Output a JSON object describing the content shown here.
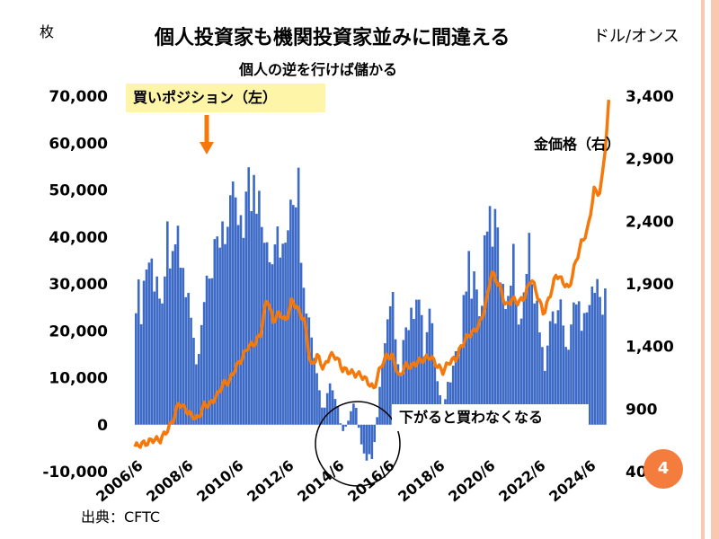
{
  "slide": {
    "title": "個人投資家も機関投資家並みに間違える",
    "subtitle": "個人の逆を行けば儲かる",
    "left_unit": "枚",
    "right_unit": "ドル/オンス",
    "source": "出典：CFTC",
    "page_number": "4"
  },
  "annotations": {
    "buy_box": "買いポジション（左）",
    "sell_box": "下がると買わなくなる",
    "gold_label": "金価格（右）"
  },
  "colors": {
    "bars": "#3c6ac6",
    "gold_line": "#f5780a",
    "arrow": "#f5780a",
    "callout_box": "#fff5a8",
    "stripe": "#f8c9b0",
    "badge": "#f47c3c"
  },
  "chart_data": {
    "type": "bar",
    "x_ticks": [
      "2006/6",
      "2008/6",
      "2010/6",
      "2012/6",
      "2014/6",
      "2016/6",
      "2018/6",
      "2020/6",
      "2022/6",
      "2024/6"
    ],
    "y_left_ticks": [
      "70,000",
      "60,000",
      "50,000",
      "40,000",
      "30,000",
      "20,000",
      "10,000",
      "0",
      "-10,000"
    ],
    "y_right_ticks": [
      "3,400",
      "2,900",
      "2,400",
      "1,900",
      "1,400",
      "900",
      "400"
    ],
    "ylim_left": [
      -10000,
      70000
    ],
    "ylim_right": [
      400,
      3400
    ],
    "x_range": [
      "2006-06",
      "2025-03"
    ],
    "series": [
      {
        "name": "買いポジション（左）",
        "axis": "left",
        "type": "bar",
        "points": [
          [
            "2006-06",
            30000
          ],
          [
            "2006-09",
            25000
          ],
          [
            "2006-12",
            36000
          ],
          [
            "2007-03",
            33000
          ],
          [
            "2007-06",
            27000
          ],
          [
            "2007-09",
            38000
          ],
          [
            "2007-12",
            42000
          ],
          [
            "2008-03",
            36000
          ],
          [
            "2008-06",
            30000
          ],
          [
            "2008-09",
            22000
          ],
          [
            "2008-12",
            10000
          ],
          [
            "2009-03",
            26000
          ],
          [
            "2009-06",
            28000
          ],
          [
            "2009-09",
            36000
          ],
          [
            "2009-12",
            45000
          ],
          [
            "2010-03",
            40000
          ],
          [
            "2010-06",
            48000
          ],
          [
            "2010-09",
            46000
          ],
          [
            "2010-12",
            50000
          ],
          [
            "2011-03",
            48000
          ],
          [
            "2011-06",
            50000
          ],
          [
            "2011-09",
            42000
          ],
          [
            "2011-12",
            38000
          ],
          [
            "2012-03",
            42000
          ],
          [
            "2012-06",
            35000
          ],
          [
            "2012-09",
            45000
          ],
          [
            "2012-10",
            58000
          ],
          [
            "2012-12",
            50000
          ],
          [
            "2013-03",
            32000
          ],
          [
            "2013-06",
            18000
          ],
          [
            "2013-09",
            10000
          ],
          [
            "2013-12",
            2000
          ],
          [
            "2014-03",
            8000
          ],
          [
            "2014-06",
            6000
          ],
          [
            "2014-09",
            -2000
          ],
          [
            "2014-12",
            1000
          ],
          [
            "2015-03",
            5000
          ],
          [
            "2015-06",
            -4000
          ],
          [
            "2015-09",
            -8000
          ],
          [
            "2015-12",
            -6000
          ],
          [
            "2016-03",
            8000
          ],
          [
            "2016-06",
            18000
          ],
          [
            "2016-09",
            25000
          ],
          [
            "2016-12",
            10000
          ],
          [
            "2017-03",
            18000
          ],
          [
            "2017-06",
            22000
          ],
          [
            "2017-09",
            27000
          ],
          [
            "2017-12",
            16000
          ],
          [
            "2018-03",
            22000
          ],
          [
            "2018-06",
            10000
          ],
          [
            "2018-09",
            3000
          ],
          [
            "2018-12",
            9000
          ],
          [
            "2019-03",
            13000
          ],
          [
            "2019-06",
            22000
          ],
          [
            "2019-09",
            34000
          ],
          [
            "2019-12",
            30000
          ],
          [
            "2020-03",
            25000
          ],
          [
            "2020-06",
            40000
          ],
          [
            "2020-09",
            44000
          ],
          [
            "2020-12",
            35000
          ],
          [
            "2021-03",
            27000
          ],
          [
            "2021-06",
            36000
          ],
          [
            "2021-09",
            24000
          ],
          [
            "2021-12",
            30000
          ],
          [
            "2022-03",
            38000
          ],
          [
            "2022-06",
            24000
          ],
          [
            "2022-09",
            12000
          ],
          [
            "2022-12",
            20000
          ],
          [
            "2023-03",
            26000
          ],
          [
            "2023-06",
            22000
          ],
          [
            "2023-09",
            16000
          ],
          [
            "2023-12",
            26000
          ],
          [
            "2024-03",
            24000
          ],
          [
            "2024-06",
            28000
          ],
          [
            "2024-09",
            30000
          ],
          [
            "2024-12",
            26000
          ],
          [
            "2025-03",
            32000
          ]
        ]
      },
      {
        "name": "金価格（右）",
        "axis": "right",
        "type": "line",
        "points": [
          [
            "2006-06",
            600
          ],
          [
            "2006-09",
            620
          ],
          [
            "2006-12",
            630
          ],
          [
            "2007-03",
            660
          ],
          [
            "2007-06",
            650
          ],
          [
            "2007-09",
            720
          ],
          [
            "2007-12",
            800
          ],
          [
            "2008-03",
            950
          ],
          [
            "2008-06",
            900
          ],
          [
            "2008-09",
            850
          ],
          [
            "2008-12",
            820
          ],
          [
            "2009-03",
            930
          ],
          [
            "2009-06",
            940
          ],
          [
            "2009-09",
            1000
          ],
          [
            "2009-12",
            1100
          ],
          [
            "2010-03",
            1120
          ],
          [
            "2010-06",
            1230
          ],
          [
            "2010-09",
            1300
          ],
          [
            "2010-12",
            1400
          ],
          [
            "2011-03",
            1420
          ],
          [
            "2011-06",
            1500
          ],
          [
            "2011-09",
            1800
          ],
          [
            "2011-12",
            1600
          ],
          [
            "2012-03",
            1670
          ],
          [
            "2012-06",
            1600
          ],
          [
            "2012-09",
            1770
          ],
          [
            "2012-12",
            1690
          ],
          [
            "2013-03",
            1600
          ],
          [
            "2013-06",
            1230
          ],
          [
            "2013-09",
            1330
          ],
          [
            "2013-12",
            1220
          ],
          [
            "2014-03",
            1330
          ],
          [
            "2014-06",
            1320
          ],
          [
            "2014-09",
            1220
          ],
          [
            "2014-12",
            1200
          ],
          [
            "2015-03",
            1180
          ],
          [
            "2015-06",
            1170
          ],
          [
            "2015-09",
            1120
          ],
          [
            "2015-12",
            1060
          ],
          [
            "2016-03",
            1230
          ],
          [
            "2016-06",
            1320
          ],
          [
            "2016-09",
            1320
          ],
          [
            "2016-12",
            1150
          ],
          [
            "2017-03",
            1250
          ],
          [
            "2017-06",
            1240
          ],
          [
            "2017-09",
            1280
          ],
          [
            "2017-12",
            1300
          ],
          [
            "2018-03",
            1320
          ],
          [
            "2018-06",
            1250
          ],
          [
            "2018-09",
            1200
          ],
          [
            "2018-12",
            1280
          ],
          [
            "2019-03",
            1300
          ],
          [
            "2019-06",
            1410
          ],
          [
            "2019-09",
            1490
          ],
          [
            "2019-12",
            1520
          ],
          [
            "2020-03",
            1600
          ],
          [
            "2020-06",
            1780
          ],
          [
            "2020-08",
            2000
          ],
          [
            "2020-12",
            1880
          ],
          [
            "2021-03",
            1720
          ],
          [
            "2021-06",
            1780
          ],
          [
            "2021-09",
            1750
          ],
          [
            "2021-12",
            1800
          ],
          [
            "2022-03",
            1950
          ],
          [
            "2022-06",
            1810
          ],
          [
            "2022-09",
            1660
          ],
          [
            "2022-12",
            1810
          ],
          [
            "2023-03",
            1980
          ],
          [
            "2023-06",
            1920
          ],
          [
            "2023-09",
            1860
          ],
          [
            "2023-12",
            2060
          ],
          [
            "2024-03",
            2230
          ],
          [
            "2024-06",
            2330
          ],
          [
            "2024-09",
            2650
          ],
          [
            "2024-12",
            2620
          ],
          [
            "2025-03",
            3100
          ],
          [
            "2025-04",
            3350
          ]
        ]
      }
    ]
  }
}
